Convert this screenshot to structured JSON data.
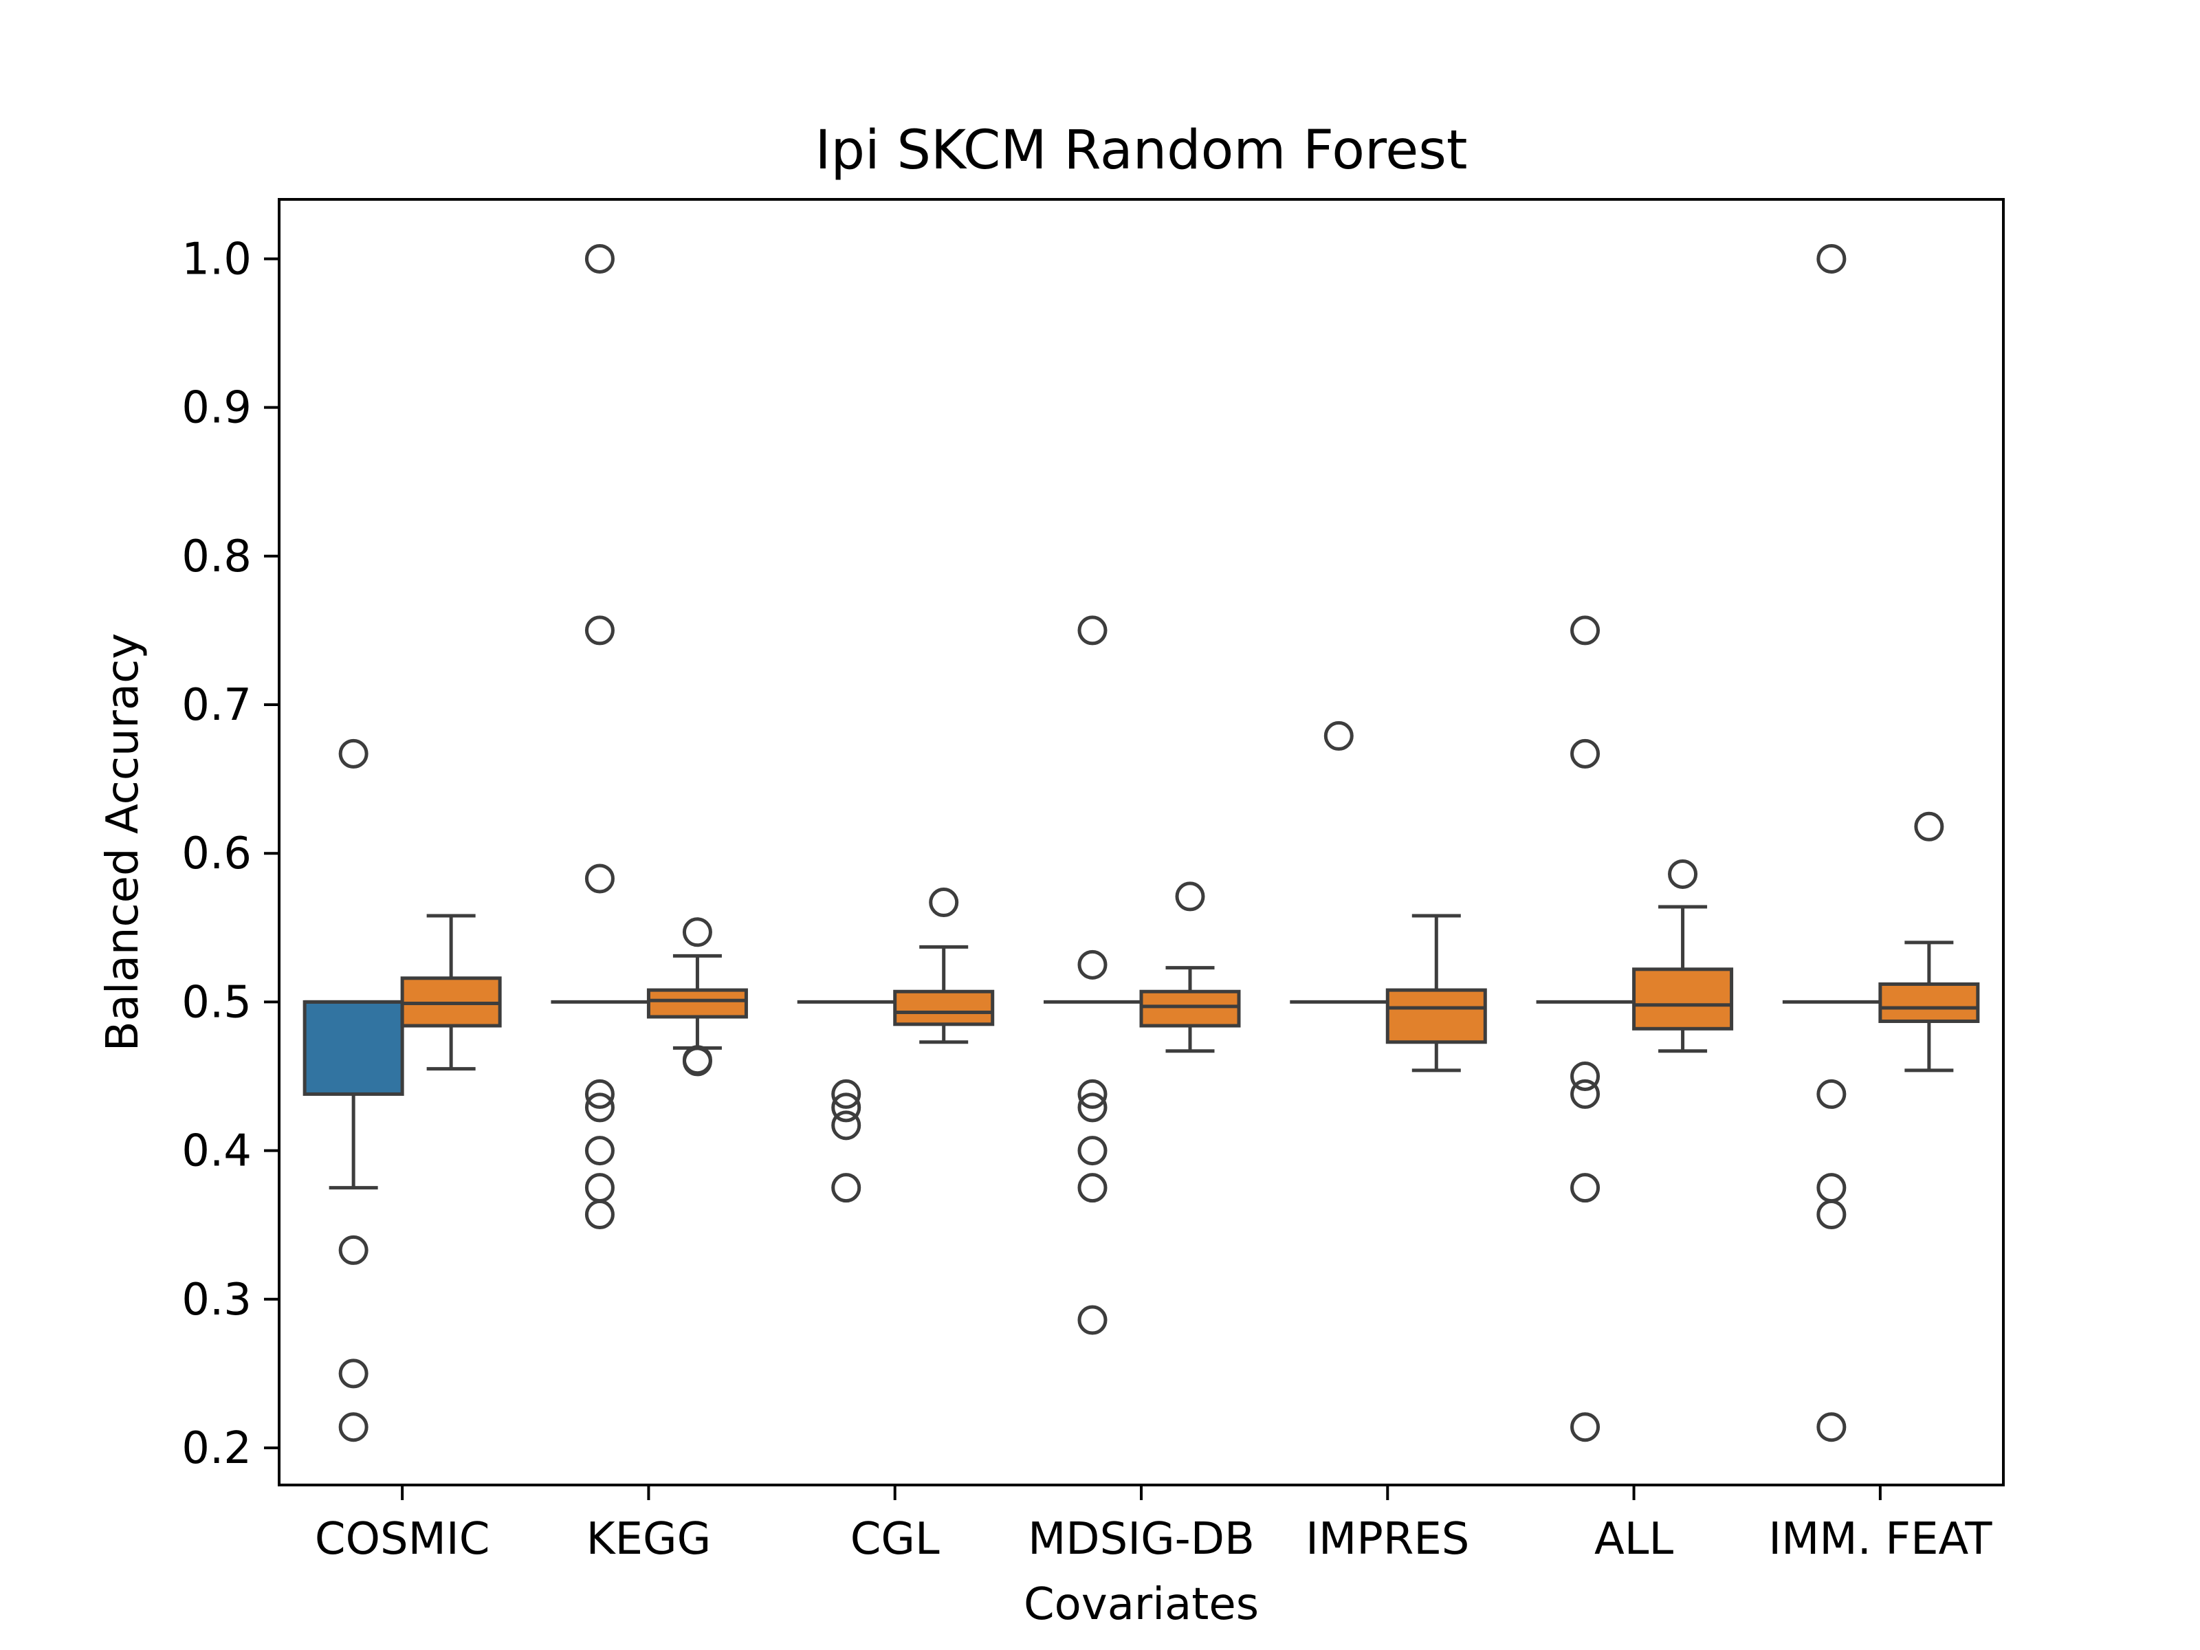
{
  "chart_data": {
    "type": "box",
    "title": "Ipi  SKCM  Random Forest",
    "xlabel": "Covariates",
    "ylabel": "Balanced Accuracy",
    "ylim": [
      0.175,
      1.04
    ],
    "yticks": [
      "0.2",
      "0.3",
      "0.4",
      "0.5",
      "0.6",
      "0.7",
      "0.8",
      "0.9",
      "1.0"
    ],
    "ytick_values": [
      0.2,
      0.3,
      0.4,
      0.5,
      0.6,
      0.7,
      0.8,
      0.9,
      1.0
    ],
    "categories": [
      "COSMIC",
      "KEGG",
      "CGL",
      "MDSIG-DB",
      "IMPRES",
      "ALL",
      "IMM. FEAT"
    ],
    "grid": false,
    "legend": "none",
    "colors": {
      "blue": "#3274a1",
      "orange": "#e1812c",
      "line": "#3d3d3d"
    },
    "series": [
      {
        "color": "blue",
        "boxes": [
          {
            "category": "COSMIC",
            "q1": 0.438,
            "median": 0.5,
            "q3": 0.5,
            "whislo": 0.375,
            "whishi": 0.5,
            "fliers": [
              0.667,
              0.333,
              0.25,
              0.214
            ]
          },
          {
            "category": "KEGG",
            "q1": 0.5,
            "median": 0.5,
            "q3": 0.5,
            "whislo": 0.5,
            "whishi": 0.5,
            "fliers": [
              1.0,
              0.75,
              0.583,
              0.438,
              0.429,
              0.4,
              0.375,
              0.357
            ]
          },
          {
            "category": "CGL",
            "q1": 0.5,
            "median": 0.5,
            "q3": 0.5,
            "whislo": 0.5,
            "whishi": 0.5,
            "fliers": [
              0.438,
              0.429,
              0.417,
              0.375
            ]
          },
          {
            "category": "MDSIG-DB",
            "q1": 0.5,
            "median": 0.5,
            "q3": 0.5,
            "whislo": 0.5,
            "whishi": 0.5,
            "fliers": [
              0.75,
              0.525,
              0.438,
              0.429,
              0.4,
              0.375,
              0.286
            ]
          },
          {
            "category": "IMPRES",
            "q1": 0.5,
            "median": 0.5,
            "q3": 0.5,
            "whislo": 0.5,
            "whishi": 0.5,
            "fliers": [
              0.679
            ]
          },
          {
            "category": "ALL",
            "q1": 0.5,
            "median": 0.5,
            "q3": 0.5,
            "whislo": 0.5,
            "whishi": 0.5,
            "fliers": [
              0.75,
              0.667,
              0.45,
              0.438,
              0.375,
              0.214
            ]
          },
          {
            "category": "IMM. FEAT",
            "q1": 0.5,
            "median": 0.5,
            "q3": 0.5,
            "whislo": 0.5,
            "whishi": 0.5,
            "fliers": [
              1.0,
              0.438,
              0.375,
              0.357,
              0.214
            ]
          }
        ]
      },
      {
        "color": "orange",
        "boxes": [
          {
            "category": "COSMIC",
            "q1": 0.484,
            "median": 0.499,
            "q3": 0.516,
            "whislo": 0.455,
            "whishi": 0.558,
            "fliers": []
          },
          {
            "category": "KEGG",
            "q1": 0.49,
            "median": 0.501,
            "q3": 0.508,
            "whislo": 0.469,
            "whishi": 0.531,
            "fliers": [
              0.547,
              0.461,
              0.46
            ]
          },
          {
            "category": "CGL",
            "q1": 0.485,
            "median": 0.493,
            "q3": 0.507,
            "whislo": 0.473,
            "whishi": 0.537,
            "fliers": [
              0.567
            ]
          },
          {
            "category": "MDSIG-DB",
            "q1": 0.484,
            "median": 0.497,
            "q3": 0.507,
            "whislo": 0.467,
            "whishi": 0.523,
            "fliers": [
              0.571
            ]
          },
          {
            "category": "IMPRES",
            "q1": 0.473,
            "median": 0.496,
            "q3": 0.508,
            "whislo": 0.454,
            "whishi": 0.558,
            "fliers": []
          },
          {
            "category": "ALL",
            "q1": 0.482,
            "median": 0.498,
            "q3": 0.522,
            "whislo": 0.467,
            "whishi": 0.564,
            "fliers": [
              0.586
            ]
          },
          {
            "category": "IMM. FEAT",
            "q1": 0.487,
            "median": 0.496,
            "q3": 0.512,
            "whislo": 0.454,
            "whishi": 0.54,
            "fliers": [
              0.618
            ]
          }
        ]
      }
    ]
  }
}
